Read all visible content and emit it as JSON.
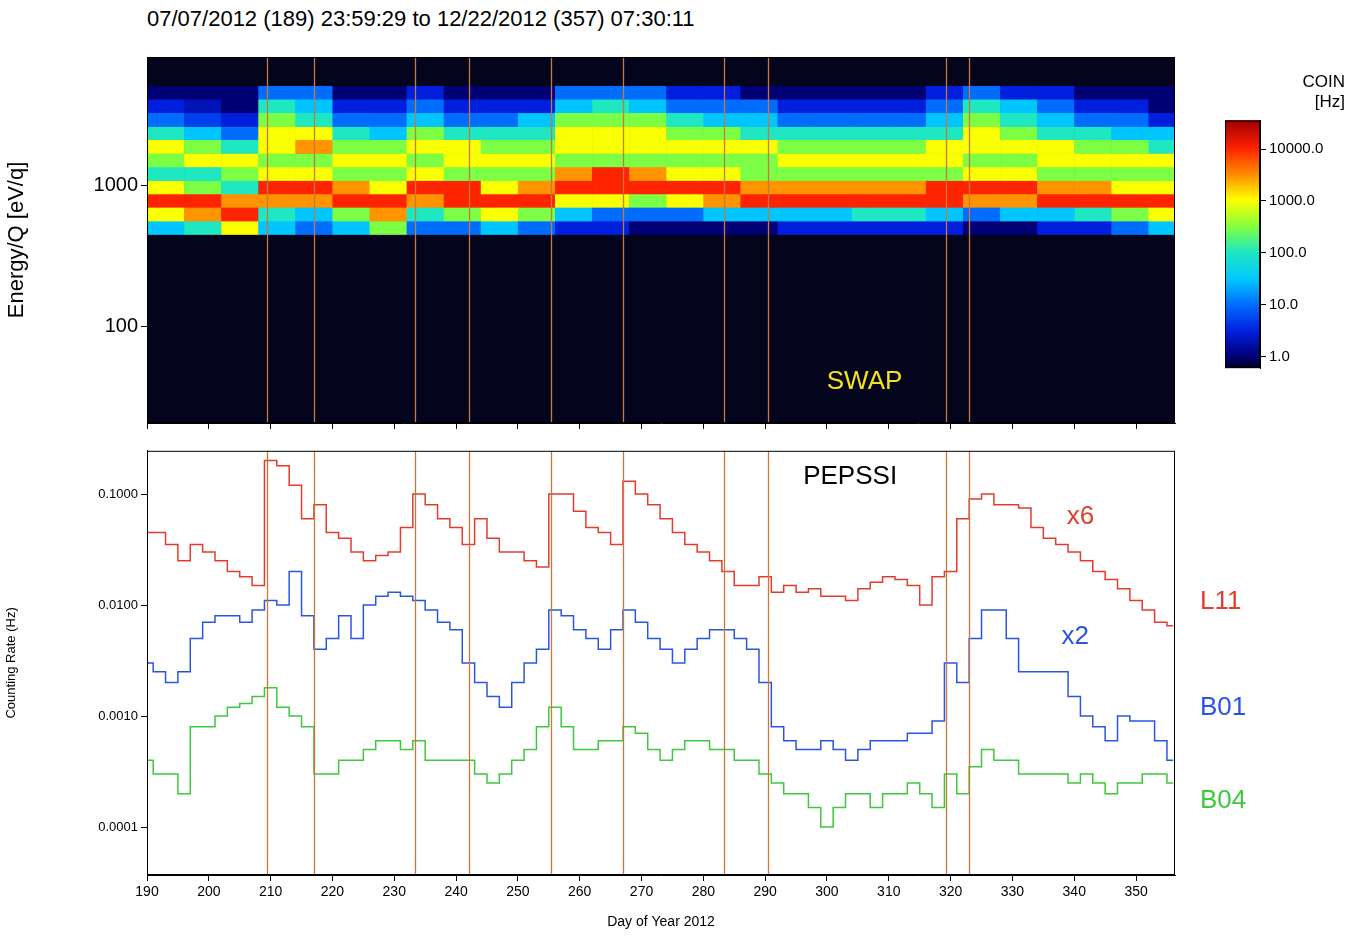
{
  "chart_data": [
    {
      "type": "heatmap",
      "title": "07/07/2012 (189) 23:59:29 to 12/22/2012 (357) 07:30:11",
      "y_label": "Energy/Q [eV/q]",
      "log": "y",
      "grid": false,
      "tick_labels": "y",
      "panel_label": "SWAP",
      "panel_label_color": "#f2e21c",
      "xlim": [
        190,
        356.3
      ],
      "xticks": [
        190,
        200,
        210,
        220,
        230,
        240,
        250,
        260,
        270,
        280,
        290,
        300,
        310,
        320,
        330,
        340,
        350
      ],
      "ylim": [
        21,
        8000
      ],
      "yticks": [
        100,
        1000
      ],
      "x_edges": [
        190,
        196,
        202,
        208,
        214,
        220,
        226,
        232,
        238,
        244,
        250,
        256,
        262,
        268,
        274,
        280,
        286,
        292,
        298,
        304,
        310,
        316,
        322,
        328,
        334,
        340,
        346,
        352,
        356.3
      ],
      "y_edges": [
        450,
        560,
        700,
        870,
        1080,
        1350,
        1680,
        2100,
        2600,
        3250,
        4050,
        5000
      ],
      "cells": [
        [
          30,
          1000,
          10000,
          1000,
          100,
          300,
          1000,
          100,
          10,
          3,
          1
        ],
        [
          100,
          3000,
          10000,
          300,
          100,
          1000,
          300,
          30,
          5,
          2,
          1
        ],
        [
          1000,
          10000,
          3000,
          100,
          300,
          1000,
          100,
          10,
          3,
          1,
          1
        ],
        [
          30,
          100,
          3000,
          10000,
          1000,
          300,
          1000,
          1000,
          300,
          100,
          10
        ],
        [
          10,
          30,
          3000,
          10000,
          1000,
          300,
          3000,
          1000,
          100,
          30,
          10
        ],
        [
          30,
          300,
          10000,
          3000,
          300,
          1000,
          300,
          100,
          10,
          3,
          1
        ],
        [
          300,
          3000,
          10000,
          1000,
          300,
          1000,
          300,
          30,
          10,
          3,
          1
        ],
        [
          10,
          100,
          3000,
          10000,
          1000,
          300,
          1000,
          300,
          30,
          10,
          3
        ],
        [
          10,
          300,
          10000,
          10000,
          300,
          1000,
          1000,
          100,
          10,
          3,
          1
        ],
        [
          30,
          1000,
          10000,
          1000,
          300,
          1000,
          300,
          100,
          10,
          3,
          1
        ],
        [
          10,
          300,
          10000,
          3000,
          300,
          1000,
          300,
          100,
          30,
          3,
          1
        ],
        [
          3,
          30,
          1000,
          10000,
          3000,
          300,
          1000,
          1000,
          300,
          30,
          10
        ],
        [
          3,
          10,
          1000,
          10000,
          10000,
          300,
          1000,
          1000,
          300,
          100,
          10
        ],
        [
          1,
          10,
          300,
          10000,
          3000,
          300,
          1000,
          1000,
          300,
          30,
          10
        ],
        [
          1,
          10,
          1000,
          10000,
          1000,
          300,
          1000,
          300,
          100,
          10,
          3
        ],
        [
          1,
          30,
          3000,
          10000,
          1000,
          300,
          1000,
          300,
          30,
          10,
          3
        ],
        [
          1,
          30,
          10000,
          3000,
          300,
          300,
          1000,
          100,
          30,
          10,
          1
        ],
        [
          3,
          30,
          10000,
          3000,
          300,
          1000,
          300,
          100,
          10,
          3,
          1
        ],
        [
          3,
          30,
          10000,
          3000,
          300,
          1000,
          300,
          100,
          10,
          3,
          1
        ],
        [
          3,
          100,
          10000,
          3000,
          300,
          1000,
          300,
          100,
          10,
          3,
          1
        ],
        [
          3,
          100,
          10000,
          3000,
          300,
          1000,
          300,
          100,
          10,
          3,
          1
        ],
        [
          3,
          30,
          10000,
          10000,
          300,
          1000,
          1000,
          100,
          30,
          10,
          3
        ],
        [
          1,
          10,
          3000,
          10000,
          1000,
          300,
          1000,
          1000,
          300,
          100,
          10
        ],
        [
          1,
          30,
          3000,
          10000,
          1000,
          300,
          1000,
          300,
          100,
          30,
          3
        ],
        [
          3,
          30,
          10000,
          3000,
          300,
          1000,
          1000,
          100,
          30,
          10,
          3
        ],
        [
          3,
          100,
          10000,
          3000,
          300,
          1000,
          300,
          100,
          10,
          3,
          1
        ],
        [
          10,
          300,
          10000,
          1000,
          300,
          1000,
          300,
          30,
          10,
          3,
          1
        ],
        [
          30,
          1000,
          10000,
          1000,
          300,
          1000,
          100,
          30,
          3,
          1,
          1
        ]
      ],
      "colorbar": {
        "title": [
          "COIN",
          "[Hz]"
        ],
        "log": true,
        "range": [
          0.6,
          35000
        ],
        "ticks": [
          {
            "value": 1,
            "label": "1.0"
          },
          {
            "value": 10,
            "label": "10.0"
          },
          {
            "value": 100,
            "label": "100.0"
          },
          {
            "value": 1000,
            "label": "1000.0"
          },
          {
            "value": 10000,
            "label": "10000.0"
          }
        ]
      }
    },
    {
      "type": "line",
      "panel_label": "PEPSSI",
      "x_label": "Day of Year 2012",
      "y_label": "Counting Rate (Hz)",
      "log": "y",
      "grid": false,
      "line_style": "steps",
      "xlim": [
        190,
        356.3
      ],
      "xticks": [
        190,
        200,
        210,
        220,
        230,
        240,
        250,
        260,
        270,
        280,
        290,
        300,
        310,
        320,
        330,
        340,
        350
      ],
      "ylim": [
        3.7e-05,
        0.245
      ],
      "yticks": [
        {
          "value": 0.1,
          "label": "0.1000"
        },
        {
          "value": 0.01,
          "label": "0.0100"
        },
        {
          "value": 0.001,
          "label": "0.0010"
        },
        {
          "value": 0.0001,
          "label": "0.0001"
        }
      ],
      "vertical_lines": [
        209.4,
        217,
        233.4,
        242.1,
        255.4,
        267,
        283.4,
        290.5,
        319.3,
        323
      ],
      "x": [
        190,
        192,
        194,
        196,
        198,
        200,
        202,
        204,
        206,
        208,
        210,
        212,
        214,
        216,
        218,
        220,
        222,
        224,
        226,
        228,
        230,
        232,
        234,
        236,
        238,
        240,
        242,
        244,
        246,
        248,
        250,
        252,
        254,
        256,
        258,
        260,
        262,
        264,
        266,
        268,
        270,
        272,
        274,
        276,
        278,
        280,
        282,
        284,
        286,
        288,
        290,
        292,
        294,
        296,
        298,
        300,
        302,
        304,
        306,
        308,
        310,
        312,
        314,
        316,
        318,
        320,
        322,
        324,
        326,
        328,
        330,
        332,
        334,
        336,
        338,
        340,
        342,
        344,
        346,
        348,
        350,
        352,
        354,
        356
      ],
      "series": [
        {
          "name": "L11",
          "scale_label": "x6",
          "color": "#e53a2e",
          "values": [
            0.045,
            0.045,
            0.035,
            0.025,
            0.035,
            0.03,
            0.025,
            0.02,
            0.018,
            0.015,
            0.2,
            0.18,
            0.12,
            0.06,
            0.08,
            0.045,
            0.04,
            0.03,
            0.025,
            0.028,
            0.03,
            0.05,
            0.1,
            0.08,
            0.06,
            0.05,
            0.035,
            0.06,
            0.04,
            0.03,
            0.03,
            0.025,
            0.022,
            0.1,
            0.1,
            0.07,
            0.05,
            0.045,
            0.035,
            0.13,
            0.1,
            0.08,
            0.06,
            0.045,
            0.035,
            0.03,
            0.025,
            0.02,
            0.015,
            0.015,
            0.018,
            0.013,
            0.015,
            0.013,
            0.014,
            0.012,
            0.012,
            0.011,
            0.014,
            0.016,
            0.018,
            0.017,
            0.015,
            0.01,
            0.018,
            0.02,
            0.06,
            0.09,
            0.1,
            0.08,
            0.08,
            0.075,
            0.05,
            0.04,
            0.035,
            0.03,
            0.025,
            0.02,
            0.017,
            0.014,
            0.011,
            0.009,
            0.007,
            0.0065
          ]
        },
        {
          "name": "B01",
          "scale_label": "x2",
          "color": "#2a55e0",
          "values": [
            0.003,
            0.0025,
            0.002,
            0.0025,
            0.005,
            0.007,
            0.008,
            0.008,
            0.007,
            0.009,
            0.011,
            0.01,
            0.02,
            0.008,
            0.004,
            0.005,
            0.008,
            0.005,
            0.01,
            0.012,
            0.013,
            0.012,
            0.011,
            0.009,
            0.007,
            0.006,
            0.003,
            0.002,
            0.0015,
            0.0012,
            0.002,
            0.003,
            0.004,
            0.009,
            0.008,
            0.006,
            0.005,
            0.004,
            0.006,
            0.009,
            0.007,
            0.005,
            0.004,
            0.003,
            0.004,
            0.005,
            0.006,
            0.006,
            0.005,
            0.004,
            0.002,
            0.0008,
            0.0006,
            0.0005,
            0.0005,
            0.0006,
            0.0005,
            0.0004,
            0.0005,
            0.0006,
            0.0006,
            0.0006,
            0.0007,
            0.0007,
            0.0009,
            0.003,
            0.002,
            0.005,
            0.009,
            0.009,
            0.005,
            0.0025,
            0.0025,
            0.0025,
            0.0025,
            0.0015,
            0.001,
            0.0008,
            0.0006,
            0.001,
            0.0009,
            0.0009,
            0.0006,
            0.0004
          ]
        },
        {
          "name": "B04",
          "color": "#3ec83e",
          "values": [
            0.0004,
            0.0003,
            0.0003,
            0.0002,
            0.0008,
            0.0008,
            0.001,
            0.0012,
            0.0013,
            0.0015,
            0.0018,
            0.0012,
            0.001,
            0.0008,
            0.0003,
            0.0003,
            0.0004,
            0.0004,
            0.0005,
            0.0006,
            0.0006,
            0.0005,
            0.0006,
            0.0004,
            0.0004,
            0.0004,
            0.0004,
            0.0003,
            0.00025,
            0.0003,
            0.0004,
            0.0005,
            0.0008,
            0.0012,
            0.0008,
            0.0005,
            0.0005,
            0.0006,
            0.0006,
            0.0008,
            0.0007,
            0.0005,
            0.0004,
            0.0005,
            0.0006,
            0.0006,
            0.0005,
            0.0005,
            0.0004,
            0.0004,
            0.0003,
            0.00025,
            0.0002,
            0.0002,
            0.00015,
            0.0001,
            0.00015,
            0.0002,
            0.0002,
            0.00015,
            0.0002,
            0.0002,
            0.00025,
            0.0002,
            0.00015,
            0.0003,
            0.0002,
            0.00035,
            0.0005,
            0.0004,
            0.0004,
            0.0003,
            0.0003,
            0.0003,
            0.0003,
            0.00025,
            0.0003,
            0.00025,
            0.0002,
            0.00025,
            0.00025,
            0.0003,
            0.0003,
            0.00025
          ]
        }
      ]
    }
  ]
}
